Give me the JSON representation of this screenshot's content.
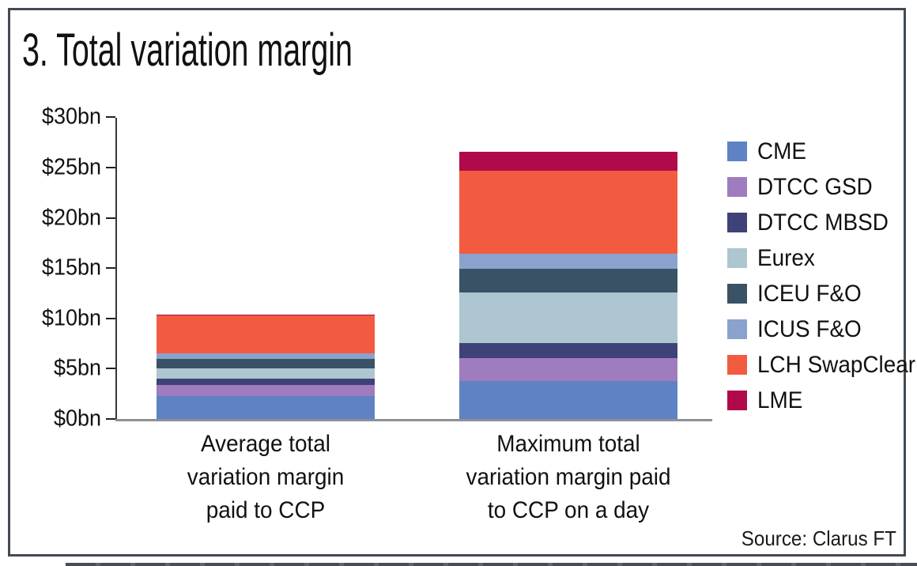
{
  "chart": {
    "title": "3. Total variation margin",
    "source": "Source: Clarus FT"
  },
  "chart_data": {
    "type": "bar",
    "stacked": true,
    "title": "3. Total variation margin",
    "unit": "$bn",
    "categories": [
      "Average total\nvariation margin\npaid to CCP",
      "Maximum total\nvariation margin paid\nto CCP on a day"
    ],
    "series": [
      {
        "name": "CME",
        "color": "#5e82c4",
        "values": [
          2.3,
          3.8
        ]
      },
      {
        "name": "DTCC GSD",
        "color": "#9f7cbd",
        "values": [
          1.1,
          2.25
        ]
      },
      {
        "name": "DTCC MBSD",
        "color": "#3f4277",
        "values": [
          0.6,
          1.5
        ]
      },
      {
        "name": "Eurex",
        "color": "#adc6cf",
        "values": [
          1.0,
          5.0
        ]
      },
      {
        "name": "ICEU F&O",
        "color": "#3a5265",
        "values": [
          1.0,
          2.4
        ]
      },
      {
        "name": "ICUS F&O",
        "color": "#8aa3cd",
        "values": [
          0.5,
          1.45
        ]
      },
      {
        "name": "LCH SwapClear",
        "color": "#f25b40",
        "values": [
          3.8,
          8.3
        ]
      },
      {
        "name": "LME",
        "color": "#b10a4b",
        "values": [
          0.1,
          1.9
        ]
      }
    ],
    "bar_totals": [
      10.4,
      26.6
    ],
    "yticks": [
      {
        "label": "$0bn",
        "value": 0
      },
      {
        "label": "$5bn",
        "value": 5
      },
      {
        "label": "$10bn",
        "value": 10
      },
      {
        "label": "$15bn",
        "value": 15
      },
      {
        "label": "$20bn",
        "value": 20
      },
      {
        "label": "$25bn",
        "value": 25
      },
      {
        "label": "$30bn",
        "value": 30
      }
    ],
    "ylim": [
      0,
      30
    ],
    "xlabel": "",
    "ylabel": "",
    "grid": false,
    "legend_position": "right",
    "source": "Source: Clarus FT"
  }
}
